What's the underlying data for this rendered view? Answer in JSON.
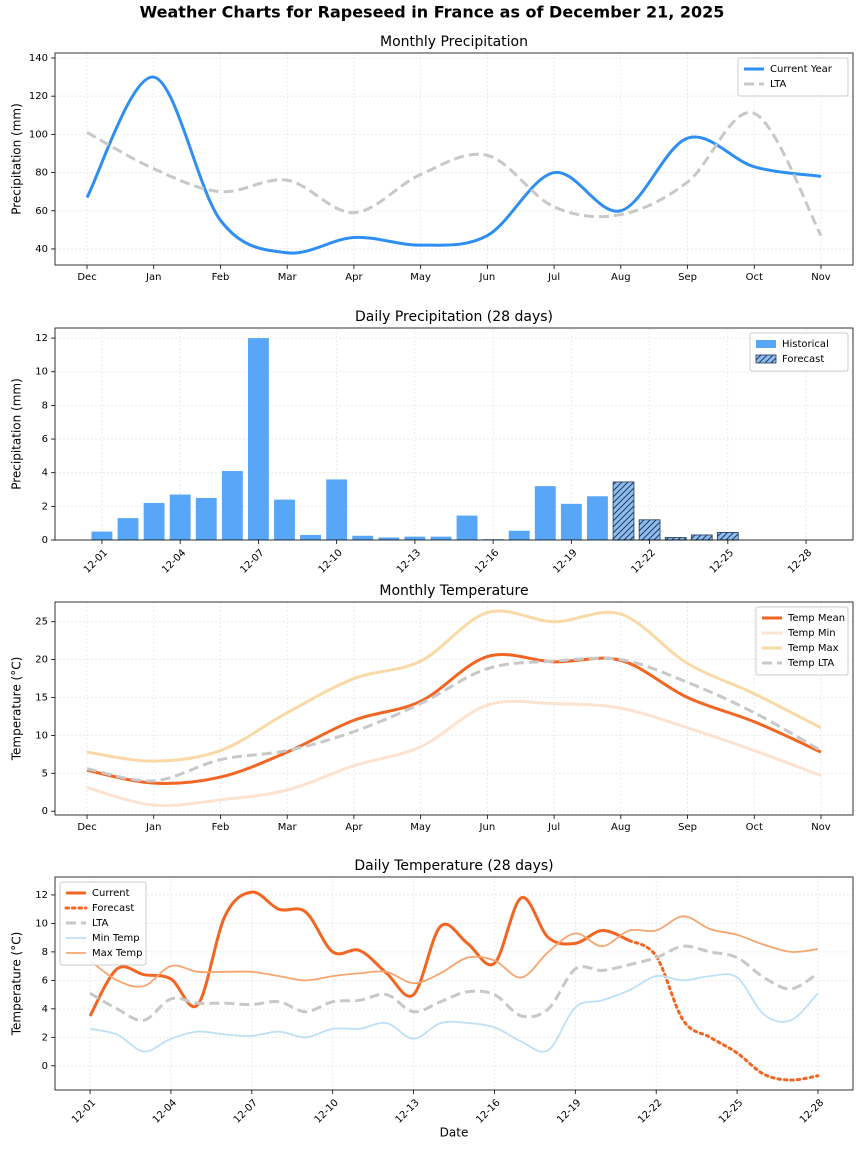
{
  "title": "Weather Charts for Rapeseed in France as of December 21, 2025",
  "chart_data": [
    {
      "type": "line",
      "title": "Monthly Precipitation",
      "y_label": "Precipitation (mm)",
      "categories": [
        "Dec",
        "Jan",
        "Feb",
        "Mar",
        "Apr",
        "May",
        "Jun",
        "Jul",
        "Aug",
        "Sep",
        "Oct",
        "Nov"
      ],
      "series": [
        {
          "name": "Current Year",
          "color": "#2f8ff0",
          "linewidth": 3,
          "values": [
            67,
            130,
            55,
            38,
            46,
            42,
            47,
            80,
            60,
            98,
            83,
            78
          ]
        },
        {
          "name": "LTA",
          "color": "#c8c8c8",
          "linewidth": 3,
          "dash": "dashed",
          "values": [
            101,
            82,
            70,
            76,
            59,
            79,
            89,
            62,
            58,
            75,
            111,
            47
          ]
        }
      ],
      "ylim": [
        31.6,
        142.6
      ],
      "yticks": [
        40,
        60,
        80,
        100,
        120,
        140
      ],
      "grid": true,
      "legend": "upper right"
    },
    {
      "type": "bar",
      "title": "Daily Precipitation (28 days)",
      "y_label": "Precipitation (mm)",
      "categories": [
        "12-01",
        null,
        null,
        "12-04",
        null,
        null,
        "12-07",
        null,
        null,
        "12-10",
        null,
        null,
        "12-13",
        null,
        null,
        "12-16",
        null,
        null,
        "12-19",
        null,
        null,
        "12-22",
        null,
        null,
        "12-25",
        null,
        null,
        "12-28"
      ],
      "xtick_rotation": 45,
      "series": [
        {
          "name": "Historical",
          "color": "#58a6f7",
          "values": [
            0.5,
            1.3,
            2.2,
            2.7,
            2.5,
            4.1,
            12,
            2.4,
            0.3,
            3.6,
            0.25,
            0.15,
            0.2,
            0.2,
            1.45,
            0.05,
            0.55,
            3.2,
            2.15,
            2.6,
            null,
            null,
            null,
            null,
            null,
            null,
            null,
            null
          ]
        },
        {
          "name": "Forecast",
          "color": "#8fbdf0",
          "hatch": "///",
          "values": [
            null,
            null,
            null,
            null,
            null,
            null,
            null,
            null,
            null,
            null,
            null,
            null,
            null,
            null,
            null,
            null,
            null,
            null,
            null,
            null,
            3.45,
            1.2,
            0.15,
            0.3,
            0.45,
            0,
            0,
            0
          ]
        }
      ],
      "ylim": [
        0,
        12.6
      ],
      "yticks": [
        0,
        2,
        4,
        6,
        8,
        10,
        12
      ],
      "grid": true,
      "legend": "upper right"
    },
    {
      "type": "line",
      "title": "Monthly Temperature",
      "y_label": "Temperature (°C)",
      "categories": [
        "Dec",
        "Jan",
        "Feb",
        "Mar",
        "Apr",
        "May",
        "Jun",
        "Jul",
        "Aug",
        "Sep",
        "Oct",
        "Nov"
      ],
      "series": [
        {
          "name": "Temp Mean",
          "color": "#f26522",
          "linewidth": 3,
          "values": [
            5.4,
            3.7,
            4.5,
            7.8,
            12,
            14.5,
            20.4,
            19.7,
            19.9,
            15,
            11.8,
            7.8
          ]
        },
        {
          "name": "Temp Min",
          "color": "#fde3cf",
          "linewidth": 3,
          "values": [
            3.1,
            0.8,
            1.5,
            2.8,
            6,
            8.5,
            14,
            14.2,
            13.6,
            11,
            8,
            4.7
          ]
        },
        {
          "name": "Temp Max",
          "color": "#f9d9a6",
          "linewidth": 3,
          "values": [
            7.8,
            6.6,
            8,
            13,
            17.5,
            19.8,
            26.2,
            25,
            26,
            19.5,
            15.5,
            11
          ]
        },
        {
          "name": "Temp LTA",
          "color": "#c8c8c8",
          "linewidth": 3,
          "dash": "dashed",
          "values": [
            5.6,
            4,
            6.8,
            8,
            10.5,
            14.2,
            18.8,
            19.8,
            20,
            17,
            13,
            8
          ]
        }
      ],
      "ylim": [
        -0.5,
        27.6
      ],
      "yticks": [
        0,
        5,
        10,
        15,
        20,
        25
      ],
      "grid": true,
      "legend": "upper right"
    },
    {
      "type": "line",
      "title": "Daily Temperature (28 days)",
      "y_label": "Temperature (°C)",
      "x_label": "Date",
      "categories": [
        "12-01",
        null,
        null,
        "12-04",
        null,
        null,
        "12-07",
        null,
        null,
        "12-10",
        null,
        null,
        "12-13",
        null,
        null,
        "12-16",
        null,
        null,
        "12-19",
        null,
        null,
        "12-22",
        null,
        null,
        "12-25",
        null,
        null,
        "12-28"
      ],
      "xtick_rotation": 45,
      "series": [
        {
          "name": "Current",
          "color": "#f26522",
          "linewidth": 3,
          "values": [
            3.5,
            6.8,
            6.4,
            6.1,
            4.3,
            10.5,
            12.2,
            11,
            10.8,
            8,
            8.1,
            6.5,
            5,
            9.8,
            8.6,
            7.2,
            11.8,
            9,
            8.6,
            9.5,
            8.8,
            null,
            null,
            null,
            null,
            null,
            null,
            null
          ]
        },
        {
          "name": "Forecast",
          "color": "#f26522",
          "linewidth": 3,
          "dash": "dotted",
          "values": [
            null,
            null,
            null,
            null,
            null,
            null,
            null,
            null,
            null,
            null,
            null,
            null,
            null,
            null,
            null,
            null,
            null,
            null,
            null,
            null,
            8.8,
            7.7,
            3.2,
            2,
            0.9,
            -0.6,
            -1,
            -0.7
          ]
        },
        {
          "name": "LTA",
          "color": "#c8c8c8",
          "linewidth": 3,
          "dash": "dashed",
          "values": [
            5.1,
            4,
            3.2,
            4.7,
            4.4,
            4.4,
            4.3,
            4.5,
            3.8,
            4.5,
            4.6,
            5,
            3.8,
            4.5,
            5.2,
            5,
            3.5,
            4,
            6.8,
            6.7,
            7.1,
            7.6,
            8.4,
            8,
            7.6,
            6.2,
            5.4,
            6.5
          ]
        },
        {
          "name": "Min Temp",
          "color": "#bde0f7",
          "linewidth": 1.8,
          "values": [
            2.6,
            2.2,
            1,
            1.9,
            2.4,
            2.2,
            2.1,
            2.4,
            2,
            2.6,
            2.6,
            3,
            1.9,
            3,
            3,
            2.7,
            1.7,
            1.1,
            4.1,
            4.6,
            5.3,
            6.3,
            6,
            6.3,
            6.2,
            3.6,
            3.2,
            5.1
          ]
        },
        {
          "name": "Max Temp",
          "color": "#f7a56f",
          "linewidth": 1.8,
          "values": [
            7.4,
            6,
            5.6,
            7,
            6.6,
            6.6,
            6.6,
            6.3,
            6,
            6.3,
            6.5,
            6.6,
            5.8,
            6.5,
            7.6,
            7.4,
            6.2,
            8,
            9.3,
            8.4,
            9.5,
            9.5,
            10.5,
            9.6,
            9.2,
            8.5,
            8,
            8.2
          ]
        }
      ],
      "ylim": [
        -1.7,
        13.26
      ],
      "yticks": [
        0,
        2,
        4,
        6,
        8,
        10,
        12
      ],
      "grid": true,
      "legend": "upper left"
    }
  ]
}
